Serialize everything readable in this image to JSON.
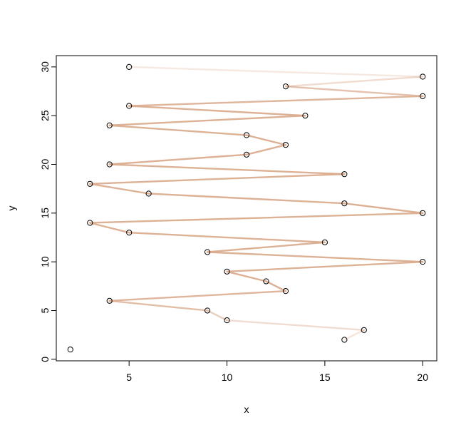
{
  "chart_data": {
    "type": "scatter",
    "title": "",
    "xlabel": "x",
    "ylabel": "y",
    "xlim": [
      1.28,
      20.72
    ],
    "ylim": [
      -0.16,
      31.16
    ],
    "xticks": [
      5,
      10,
      15,
      20
    ],
    "yticks": [
      0,
      5,
      10,
      15,
      20,
      25,
      30
    ],
    "grid": false,
    "line_color": "#d9a88a",
    "points": [
      {
        "x": 2,
        "y": 1
      },
      {
        "x": 16,
        "y": 2
      },
      {
        "x": 17,
        "y": 3
      },
      {
        "x": 10,
        "y": 4
      },
      {
        "x": 9,
        "y": 5
      },
      {
        "x": 4,
        "y": 6
      },
      {
        "x": 13,
        "y": 7
      },
      {
        "x": 12,
        "y": 8
      },
      {
        "x": 10,
        "y": 9
      },
      {
        "x": 20,
        "y": 10
      },
      {
        "x": 9,
        "y": 11
      },
      {
        "x": 15,
        "y": 12
      },
      {
        "x": 5,
        "y": 13
      },
      {
        "x": 3,
        "y": 14
      },
      {
        "x": 20,
        "y": 15
      },
      {
        "x": 16,
        "y": 16
      },
      {
        "x": 6,
        "y": 17
      },
      {
        "x": 3,
        "y": 18
      },
      {
        "x": 16,
        "y": 19
      },
      {
        "x": 4,
        "y": 20
      },
      {
        "x": 11,
        "y": 21
      },
      {
        "x": 13,
        "y": 22
      },
      {
        "x": 11,
        "y": 23
      },
      {
        "x": 4,
        "y": 24
      },
      {
        "x": 14,
        "y": 25
      },
      {
        "x": 5,
        "y": 26
      },
      {
        "x": 20,
        "y": 27
      },
      {
        "x": 13,
        "y": 28
      },
      {
        "x": 20,
        "y": 29
      },
      {
        "x": 5,
        "y": 30
      }
    ],
    "segments": [
      {
        "from": 1,
        "to": 2,
        "opacity": 0.3
      },
      {
        "from": 2,
        "to": 3,
        "opacity": 0.4
      },
      {
        "from": 3,
        "to": 4,
        "opacity": 0.55
      },
      {
        "from": 4,
        "to": 5,
        "opacity": 0.75
      },
      {
        "from": 5,
        "to": 6,
        "opacity": 0.85
      },
      {
        "from": 6,
        "to": 7,
        "opacity": 0.9
      },
      {
        "from": 7,
        "to": 8,
        "opacity": 0.9
      },
      {
        "from": 8,
        "to": 9,
        "opacity": 0.9
      },
      {
        "from": 9,
        "to": 10,
        "opacity": 0.9
      },
      {
        "from": 10,
        "to": 11,
        "opacity": 0.9
      },
      {
        "from": 11,
        "to": 12,
        "opacity": 0.9
      },
      {
        "from": 12,
        "to": 13,
        "opacity": 0.9
      },
      {
        "from": 13,
        "to": 14,
        "opacity": 0.9
      },
      {
        "from": 14,
        "to": 15,
        "opacity": 0.9
      },
      {
        "from": 15,
        "to": 16,
        "opacity": 0.9
      },
      {
        "from": 16,
        "to": 17,
        "opacity": 0.9
      },
      {
        "from": 17,
        "to": 18,
        "opacity": 0.9
      },
      {
        "from": 18,
        "to": 19,
        "opacity": 0.9
      },
      {
        "from": 19,
        "to": 20,
        "opacity": 0.9
      },
      {
        "from": 20,
        "to": 21,
        "opacity": 0.9
      },
      {
        "from": 21,
        "to": 22,
        "opacity": 0.9
      },
      {
        "from": 22,
        "to": 23,
        "opacity": 0.9
      },
      {
        "from": 23,
        "to": 24,
        "opacity": 0.9
      },
      {
        "from": 24,
        "to": 25,
        "opacity": 0.9
      },
      {
        "from": 25,
        "to": 26,
        "opacity": 0.85
      },
      {
        "from": 26,
        "to": 27,
        "opacity": 0.7
      },
      {
        "from": 27,
        "to": 28,
        "opacity": 0.4
      },
      {
        "from": 28,
        "to": 29,
        "opacity": 0.25
      }
    ]
  }
}
